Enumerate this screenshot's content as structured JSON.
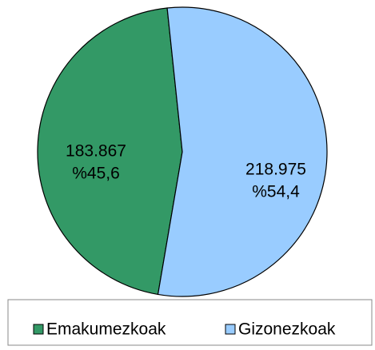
{
  "chart_data": {
    "type": "pie",
    "categories": [
      "Emakumezkoak",
      "Gizonezkoak"
    ],
    "values": [
      183867,
      218975
    ],
    "value_labels": [
      "183.867",
      "218.975"
    ],
    "percent_labels": [
      "%45,6",
      "%54,4"
    ],
    "colors": [
      "#339966",
      "#99ccff"
    ],
    "legend": "bottom"
  }
}
